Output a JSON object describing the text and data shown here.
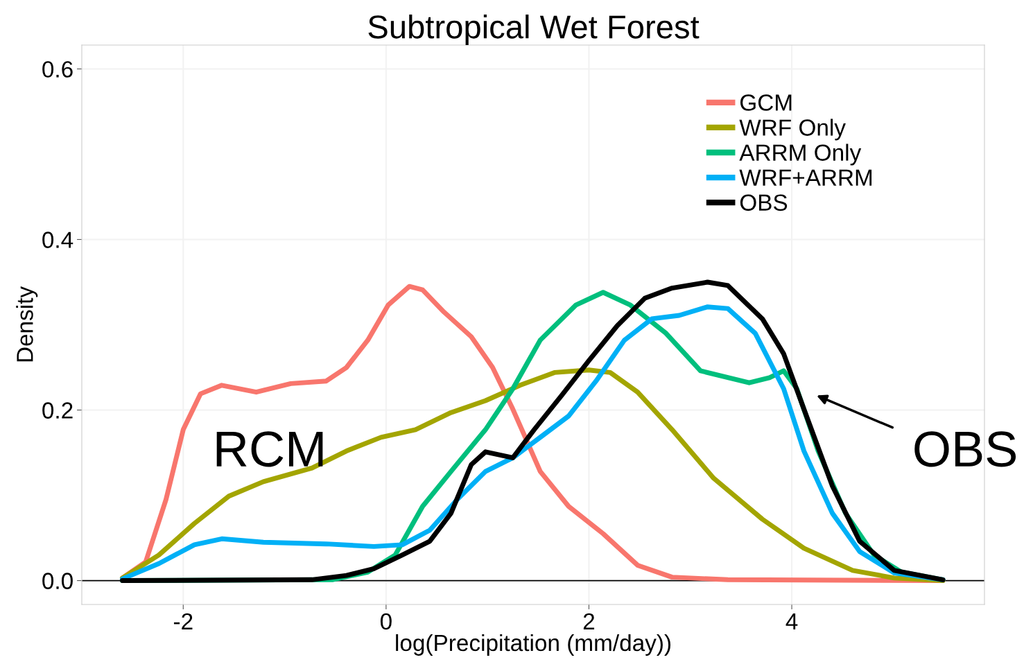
{
  "chart_data": {
    "type": "line",
    "title": "Subtropical Wet Forest",
    "xlabel": "log(Precipitation (mm/day))",
    "ylabel": "Density",
    "xlim": [
      -3.0,
      5.9
    ],
    "ylim": [
      -0.028,
      0.628
    ],
    "xticks": [
      -2,
      0,
      2,
      4
    ],
    "yticks": [
      {
        "value": 0,
        "label": "0.0"
      },
      0.2,
      0.4,
      0.6
    ],
    "grid": true,
    "legend": "top right",
    "line_style": "solid",
    "marker": "none",
    "ref_lines": [
      {
        "axis": "y",
        "value": 0,
        "color": "#000000"
      }
    ],
    "annotations": [
      "RCM",
      "OBS"
    ],
    "series": [
      {
        "name": "GCM",
        "color": "#f8766d",
        "x": [
          -2.6,
          -2.37,
          -2.17,
          -2.0,
          -1.83,
          -1.62,
          -1.28,
          -0.94,
          -0.59,
          -0.39,
          -0.18,
          0.02,
          0.23,
          0.36,
          0.57,
          0.84,
          1.05,
          1.25,
          1.52,
          1.8,
          2.14,
          2.48,
          2.82,
          3.37,
          5.49
        ],
        "values": [
          0.003,
          0.022,
          0.095,
          0.177,
          0.219,
          0.229,
          0.221,
          0.231,
          0.234,
          0.25,
          0.282,
          0.323,
          0.345,
          0.341,
          0.315,
          0.286,
          0.25,
          0.201,
          0.128,
          0.087,
          0.055,
          0.018,
          0.004,
          0.001,
          0
        ]
      },
      {
        "name": "WRF Only",
        "color": "#a3a500",
        "x": [
          -2.6,
          -2.24,
          -1.89,
          -1.55,
          -1.21,
          -0.73,
          -0.39,
          -0.05,
          0.29,
          0.64,
          0.98,
          1.32,
          1.66,
          2.0,
          2.21,
          2.48,
          2.82,
          3.23,
          3.71,
          4.12,
          4.6,
          5.01,
          5.49
        ],
        "values": [
          0.003,
          0.03,
          0.067,
          0.099,
          0.116,
          0.132,
          0.152,
          0.168,
          0.177,
          0.197,
          0.211,
          0.229,
          0.244,
          0.247,
          0.244,
          0.221,
          0.177,
          0.12,
          0.072,
          0.038,
          0.012,
          0.003,
          0
        ]
      },
      {
        "name": "ARRM Only",
        "color": "#00bf7d",
        "x": [
          -2.6,
          -0.53,
          -0.18,
          0.09,
          0.36,
          0.64,
          0.98,
          1.25,
          1.52,
          1.87,
          2.14,
          2.41,
          2.76,
          3.1,
          3.58,
          3.78,
          3.92,
          4.05,
          4.26,
          4.53,
          4.81,
          5.08,
          5.49
        ],
        "values": [
          0,
          0.001,
          0.01,
          0.03,
          0.087,
          0.128,
          0.177,
          0.225,
          0.282,
          0.323,
          0.338,
          0.323,
          0.29,
          0.246,
          0.232,
          0.238,
          0.246,
          0.225,
          0.152,
          0.079,
          0.03,
          0.01,
          0.001
        ]
      },
      {
        "name": "WRF+ARRM",
        "color": "#00b0f6",
        "x": [
          -2.6,
          -2.24,
          -1.89,
          -1.62,
          -1.21,
          -0.59,
          -0.12,
          0.16,
          0.43,
          0.7,
          0.98,
          1.25,
          1.52,
          1.8,
          2.07,
          2.35,
          2.62,
          2.89,
          3.17,
          3.37,
          3.64,
          3.92,
          4.12,
          4.4,
          4.67,
          5.01,
          5.49
        ],
        "values": [
          0.002,
          0.02,
          0.042,
          0.049,
          0.045,
          0.043,
          0.04,
          0.042,
          0.059,
          0.095,
          0.128,
          0.144,
          0.168,
          0.193,
          0.234,
          0.282,
          0.307,
          0.311,
          0.321,
          0.319,
          0.29,
          0.225,
          0.152,
          0.079,
          0.034,
          0.009,
          0.001
        ]
      },
      {
        "name": "OBS",
        "color": "#000000",
        "x": [
          -2.6,
          -0.73,
          -0.39,
          -0.12,
          0.16,
          0.43,
          0.64,
          0.84,
          0.98,
          1.25,
          1.46,
          1.73,
          2.0,
          2.28,
          2.55,
          2.82,
          3.17,
          3.37,
          3.71,
          3.92,
          4.12,
          4.4,
          4.67,
          5.01,
          5.49
        ],
        "values": [
          0,
          0.001,
          0.006,
          0.014,
          0.03,
          0.046,
          0.079,
          0.136,
          0.151,
          0.144,
          0.177,
          0.217,
          0.258,
          0.299,
          0.331,
          0.343,
          0.35,
          0.346,
          0.307,
          0.266,
          0.201,
          0.111,
          0.046,
          0.012,
          0.001
        ]
      }
    ]
  }
}
